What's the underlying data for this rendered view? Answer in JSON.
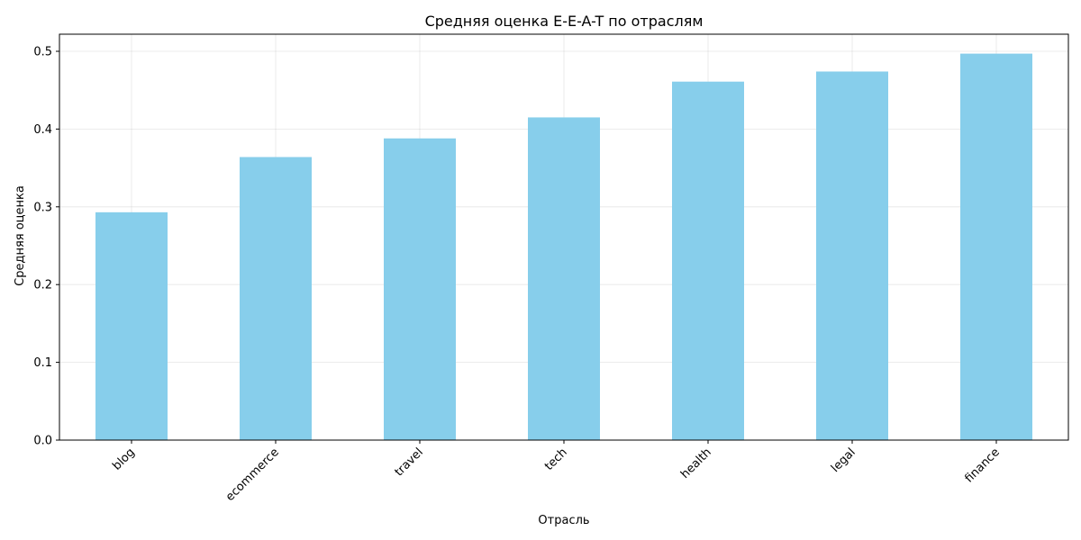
{
  "chart_data": {
    "type": "bar",
    "title": "Средняя оценка E-E-A-T по отраслям",
    "xlabel": "Отрасль",
    "ylabel": "Средняя оценка",
    "categories": [
      "blog",
      "ecommerce",
      "travel",
      "tech",
      "health",
      "legal",
      "finance"
    ],
    "values": [
      0.293,
      0.364,
      0.388,
      0.415,
      0.461,
      0.474,
      0.497
    ],
    "ylim": [
      0,
      0.522
    ],
    "yticks": [
      0.0,
      0.1,
      0.2,
      0.3,
      0.4,
      0.5
    ],
    "ytick_labels": [
      "0.0",
      "0.1",
      "0.2",
      "0.3",
      "0.4",
      "0.5"
    ],
    "bar_color": "#87CEEB",
    "grid": true,
    "xtick_rotation": 45
  }
}
